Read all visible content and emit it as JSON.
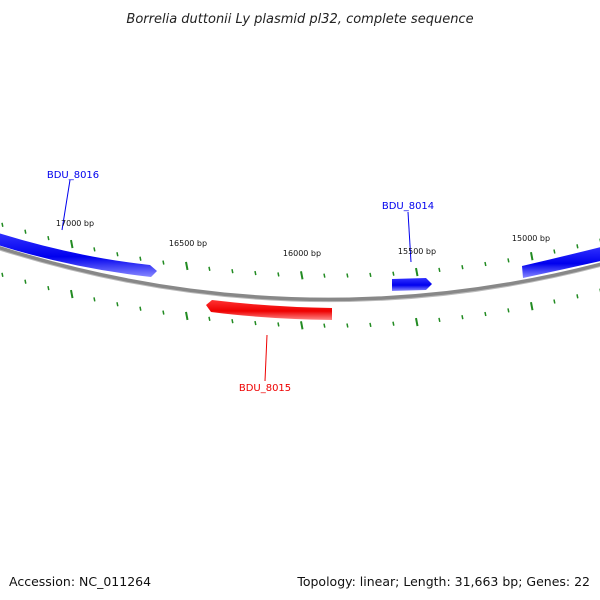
{
  "title": "Borrelia duttonii Ly plasmid pl32, complete sequence",
  "footer": {
    "accession": "Accession: NC_011264",
    "summary": "Topology: linear; Length: 31,663 bp; Genes: 22"
  },
  "colors": {
    "forward": "#0000ee",
    "reverse": "#ee0000",
    "backbone": "#888888",
    "ticks": "#228b22"
  },
  "ticks": [
    {
      "label": "17000 bp"
    },
    {
      "label": "16500 bp"
    },
    {
      "label": "16000 bp"
    },
    {
      "label": "15500 bp"
    },
    {
      "label": "15000 bp"
    }
  ],
  "genes": [
    {
      "name": "BDU_8016",
      "strand": "forward"
    },
    {
      "name": "BDU_8014",
      "strand": "forward"
    },
    {
      "name": "BDU_8015",
      "strand": "reverse"
    }
  ]
}
